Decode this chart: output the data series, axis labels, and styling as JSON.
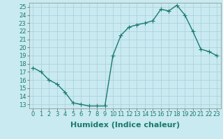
{
  "x": [
    0,
    1,
    2,
    3,
    4,
    5,
    6,
    7,
    8,
    9,
    10,
    11,
    12,
    13,
    14,
    15,
    16,
    17,
    18,
    19,
    20,
    21,
    22,
    23
  ],
  "y": [
    17.5,
    17.0,
    16.0,
    15.5,
    14.5,
    13.2,
    13.0,
    12.8,
    12.8,
    12.8,
    19.0,
    21.5,
    22.5,
    22.8,
    23.0,
    23.3,
    24.7,
    24.5,
    25.2,
    24.0,
    22.0,
    19.8,
    19.5,
    19.0
  ],
  "line_color": "#1a7a6e",
  "marker": "+",
  "markersize": 4,
  "linewidth": 1.0,
  "background_color": "#c8eaf0",
  "grid_color": "#aaccd8",
  "xlabel": "Humidex (Indice chaleur)",
  "xlabel_fontsize": 8,
  "tick_fontsize": 6,
  "xlim": [
    -0.5,
    23.5
  ],
  "ylim": [
    12.5,
    25.5
  ],
  "yticks": [
    13,
    14,
    15,
    16,
    17,
    18,
    19,
    20,
    21,
    22,
    23,
    24,
    25
  ],
  "xticks": [
    0,
    1,
    2,
    3,
    4,
    5,
    6,
    7,
    8,
    9,
    10,
    11,
    12,
    13,
    14,
    15,
    16,
    17,
    18,
    19,
    20,
    21,
    22,
    23
  ]
}
